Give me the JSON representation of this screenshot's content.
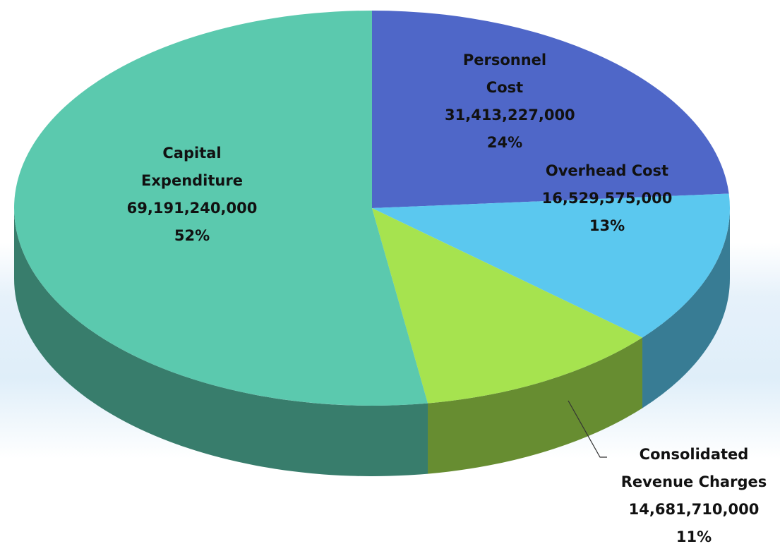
{
  "chart_data": {
    "type": "pie",
    "categories": [
      "Personnel Cost",
      "Overhead Cost",
      "Consolidated Revenue Charges",
      "Capital Expenditure"
    ],
    "values": [
      31413227000,
      16529575000,
      14681710000,
      69191240000
    ],
    "value_labels": [
      "31,413,227,000",
      "16,529,575,000",
      "14,681,710,000",
      "69,191,240,000"
    ],
    "percents": [
      24,
      13,
      11,
      52
    ],
    "percent_labels": [
      "24%",
      "13%",
      "11%",
      "52%"
    ],
    "colors": [
      "#4f67c8",
      "#5bc8ef",
      "#a6e34f",
      "#5bc9ae"
    ]
  }
}
